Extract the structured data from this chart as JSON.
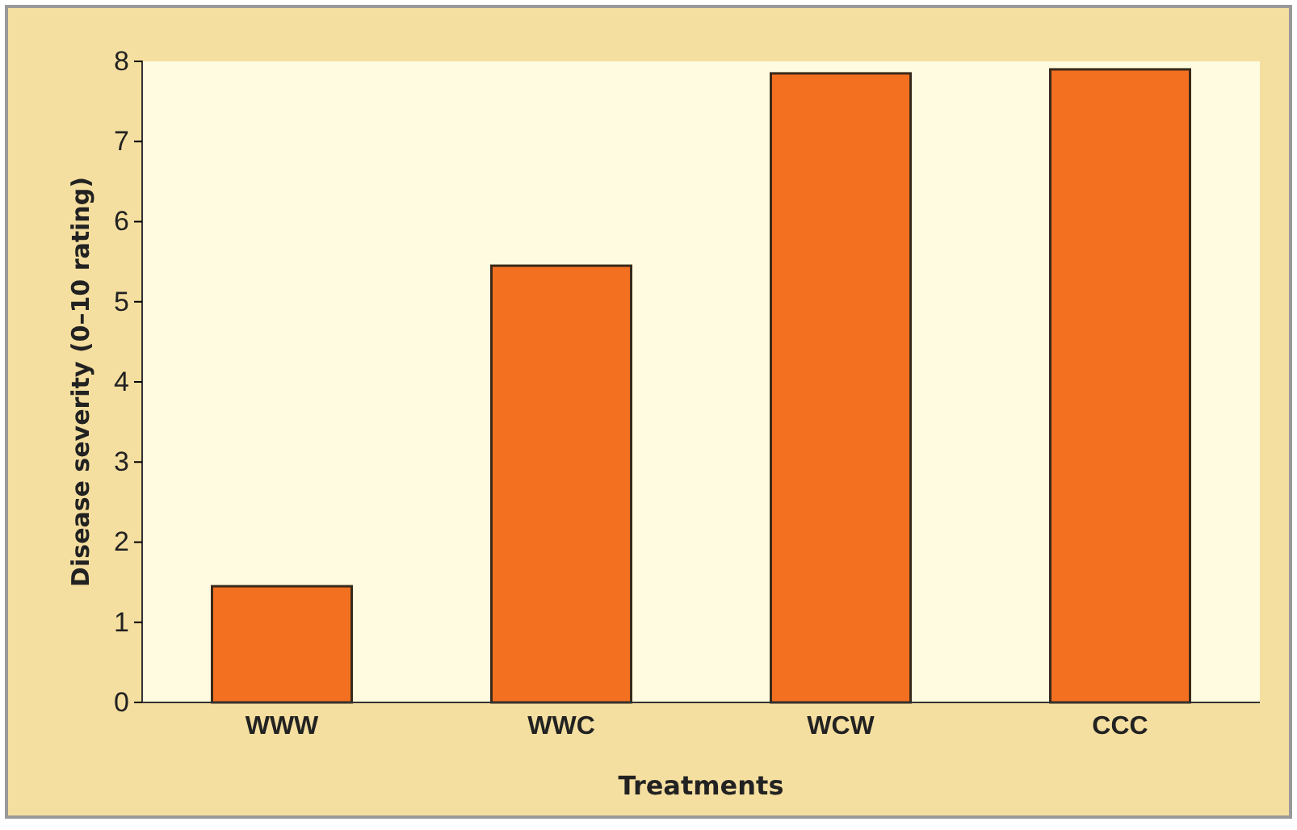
{
  "chart_data": {
    "type": "bar",
    "xlabel": "Treatments",
    "ylabel": "Disease severity (0–10 rating)",
    "categories": [
      "WWW",
      "WWC",
      "WCW",
      "CCC"
    ],
    "values": [
      1.45,
      5.45,
      7.85,
      7.9
    ],
    "color": "#f37021",
    "ylim": [
      0,
      8
    ],
    "yticks": [
      0,
      1,
      2,
      3,
      4,
      5,
      6,
      7,
      8
    ],
    "grid": false
  }
}
